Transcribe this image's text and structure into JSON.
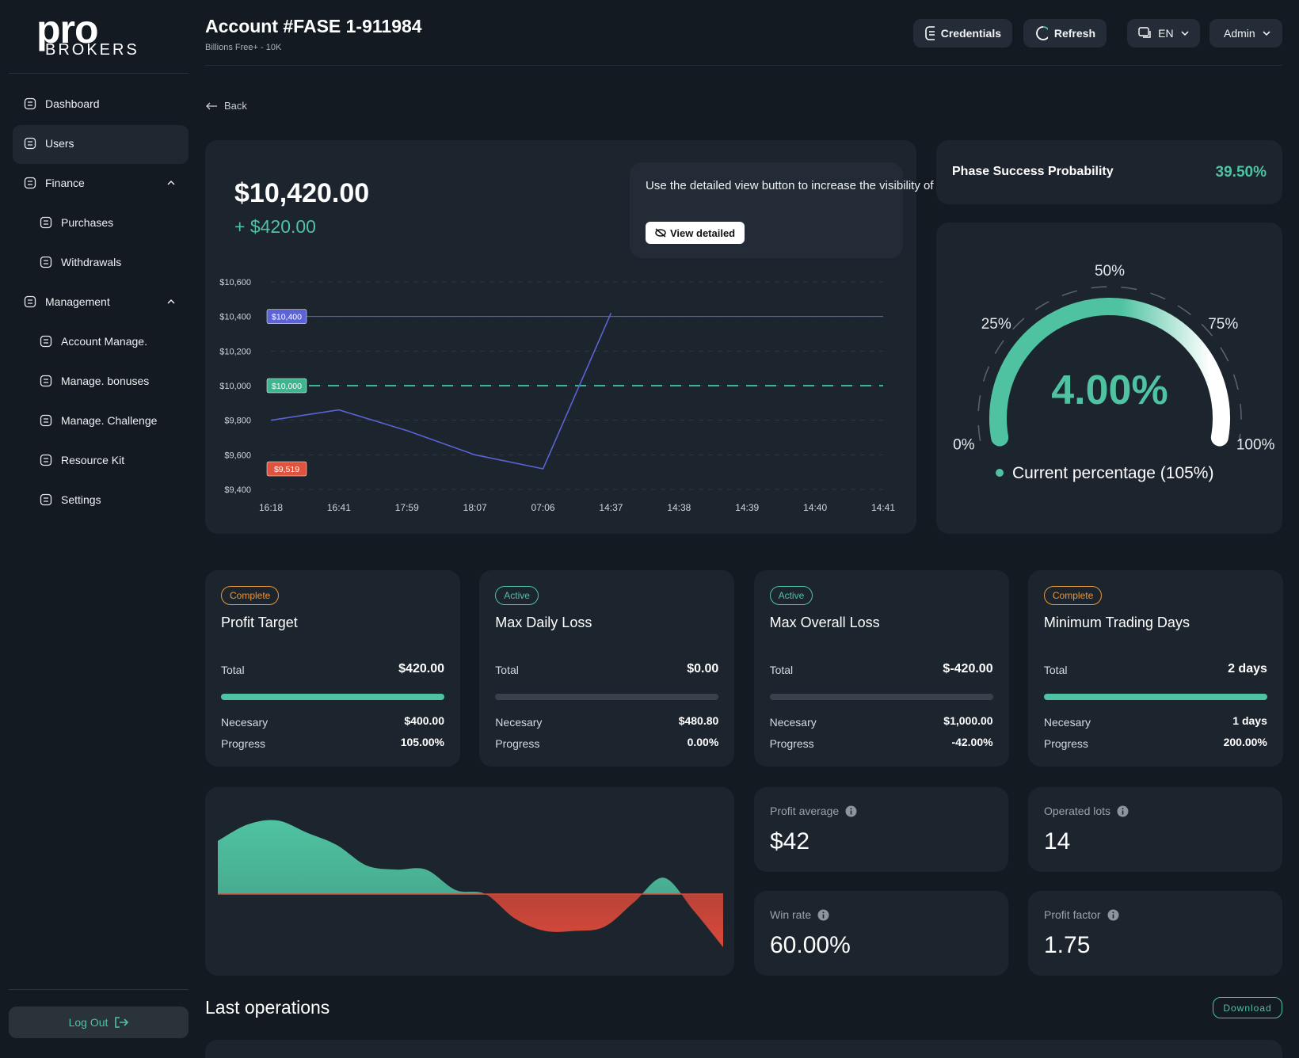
{
  "sidebar": {
    "logo": {
      "top": "pro",
      "bottom": "BROKERS"
    },
    "nav": [
      {
        "label": "Dashboard",
        "level": 1
      },
      {
        "label": "Users",
        "level": 1,
        "active": true
      },
      {
        "label": "Finance",
        "level": 1,
        "expanded": true
      },
      {
        "label": "Purchases",
        "level": 2
      },
      {
        "label": "Withdrawals",
        "level": 2
      },
      {
        "label": "Management",
        "level": 1,
        "expanded": true
      },
      {
        "label": "Account Manage.",
        "level": 2
      },
      {
        "label": "Manage. bonuses",
        "level": 2
      },
      {
        "label": "Manage. Challenge",
        "level": 2
      },
      {
        "label": "Resource Kit",
        "level": 2
      },
      {
        "label": "Settings",
        "level": 2
      }
    ],
    "logout": "Log Out"
  },
  "header": {
    "title": "Account #FASE 1-911984",
    "subtitle": "Billions Free+ - 10K",
    "buttons": [
      "Credentials",
      "Refresh"
    ],
    "language": "EN",
    "user": "Admin",
    "back": "Back"
  },
  "balance": {
    "amount": "$10,420.00",
    "change": "+ $420.00",
    "tip": "Use the detailed view button to increase the visibility of the chart in your trading",
    "tip_button": "View detailed"
  },
  "chart_data": {
    "type": "line",
    "categories": [
      "16:18",
      "16:41",
      "17:59",
      "18:07",
      "07:06",
      "14:37",
      "14:38",
      "14:39",
      "14:40",
      "14:41"
    ],
    "values": [
      9800,
      9860,
      9740,
      9600,
      9519,
      10420,
      null,
      null,
      null,
      null
    ],
    "color": "#5b63d6",
    "ylim": [
      9400,
      10600
    ],
    "yticks": [
      {
        "value": 9400,
        "label": "$9,400"
      },
      {
        "value": 9600,
        "label": "$9,600"
      },
      {
        "value": 9800,
        "label": "$9,800"
      },
      {
        "value": 10000,
        "label": "$10,000"
      },
      {
        "value": 10200,
        "label": "$10,200"
      },
      {
        "value": 10400,
        "label": "$10,400"
      },
      {
        "value": 10600,
        "label": "$10,600"
      }
    ],
    "grid": true,
    "reference_lines": [
      {
        "value": 10400,
        "label": "$10,400",
        "color": "#5b63d6",
        "style": "solid"
      },
      {
        "value": 10000,
        "label": "$10,000",
        "color": "#3fb58f",
        "style": "dashed"
      },
      {
        "value": 9519,
        "label": "$9,519",
        "color": "#e0533f",
        "style": "none"
      }
    ]
  },
  "gauge": {
    "title": "Phase Success Probability",
    "probability": "39.50%",
    "lim": [
      0,
      100
    ],
    "ticks": [
      {
        "value": 0,
        "label": "0%"
      },
      {
        "value": 25,
        "label": "25%"
      },
      {
        "value": 50,
        "label": "50%"
      },
      {
        "value": 75,
        "label": "75%"
      },
      {
        "value": 100,
        "label": "100%"
      }
    ],
    "value_label": "4.00%",
    "legend": "Current percentage (105%)",
    "color": "#4fc3a1"
  },
  "objectives": [
    {
      "status": "Complete",
      "status_color": "#e8963a",
      "title": "Profit Target",
      "total_label": "Total",
      "total": "$420.00",
      "necessary_label": "Necesary",
      "necessary": "$400.00",
      "progress_label": "Progress",
      "progress": {
        "value": 105,
        "label": "105.00%"
      }
    },
    {
      "status": "Active",
      "status_color": "#4fc3a1",
      "title": "Max Daily Loss",
      "total_label": "Total",
      "total": "$0.00",
      "necessary_label": "Necesary",
      "necessary": "$480.80",
      "progress_label": "Progress",
      "progress": {
        "value": 0,
        "label": "0.00%"
      }
    },
    {
      "status": "Active",
      "status_color": "#4fc3a1",
      "title": "Max Overall Loss",
      "total_label": "Total",
      "total": "$-420.00",
      "necessary_label": "Necesary",
      "necessary": "$1,000.00",
      "progress_label": "Progress",
      "progress": {
        "value": -42,
        "label": "-42.00%"
      }
    },
    {
      "status": "Complete",
      "status_color": "#e8963a",
      "title": "Minimum Trading Days",
      "total_label": "Total",
      "total": "2 days",
      "necessary_label": "Necesary",
      "necessary": "1 days",
      "progress_label": "Progress",
      "progress": {
        "value": 200,
        "label": "200.00%"
      }
    }
  ],
  "activity_chart": {
    "type": "area",
    "values": [
      65,
      85,
      90,
      75,
      60,
      35,
      30,
      30,
      5,
      0,
      -30,
      -45,
      -45,
      -40,
      -10,
      20,
      -20,
      -65
    ],
    "positive_color": "#4fc3a1",
    "negative_color": "#d9493a"
  },
  "stats": [
    {
      "label": "Profit average",
      "value": "$42"
    },
    {
      "label": "Operated lots",
      "value": "14"
    },
    {
      "label": "Win rate",
      "value": "60.00%"
    },
    {
      "label": "Profit factor",
      "value": "1.75"
    }
  ],
  "operations": {
    "title": "Last operations",
    "download": "Download"
  }
}
